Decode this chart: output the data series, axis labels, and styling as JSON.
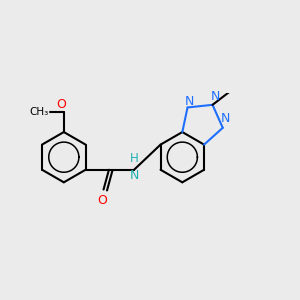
{
  "bg_color": "#ebebeb",
  "bond_color": "#000000",
  "bond_width": 1.5,
  "atom_colors": {
    "N": "#1e6fff",
    "O": "#ff0000",
    "H": "#20b0b0",
    "C": "#000000"
  },
  "font_size": 9.0,
  "figsize": [
    3.0,
    3.0
  ],
  "dpi": 100
}
